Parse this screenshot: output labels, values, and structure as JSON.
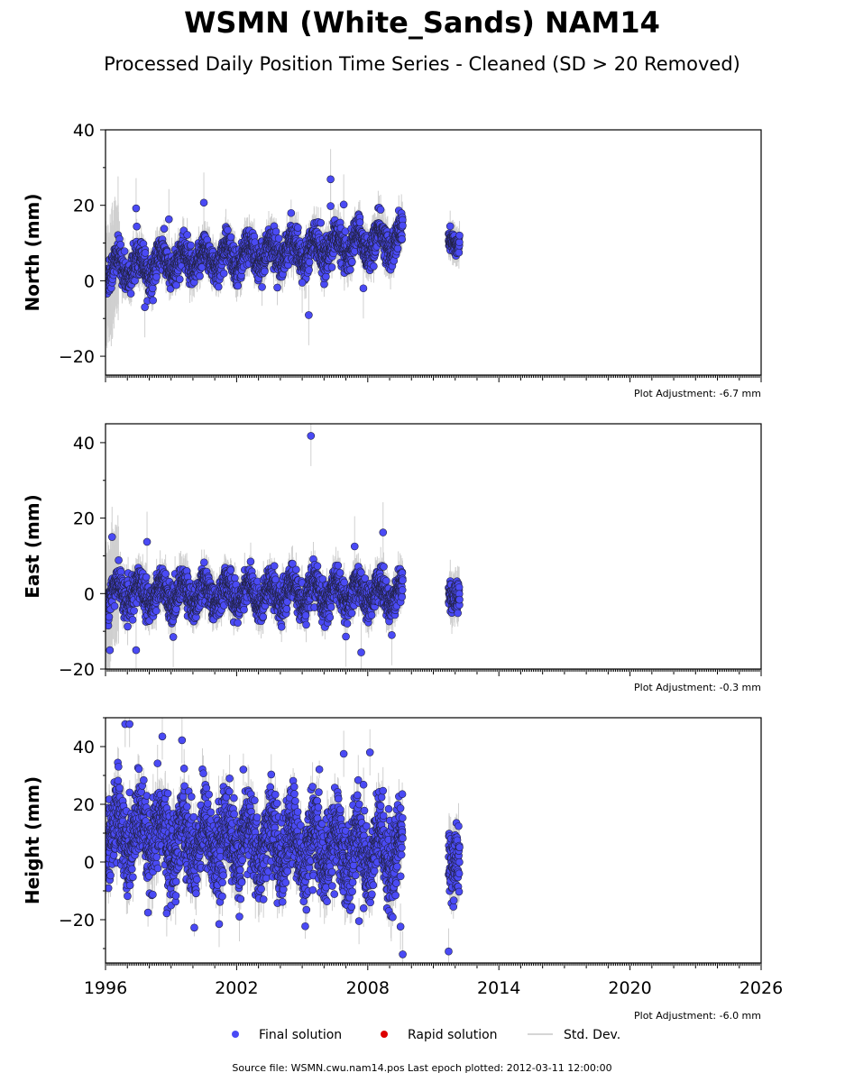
{
  "title": "WSMN (White_Sands) NAM14",
  "subtitle": "Processed Daily Position Time Series - Cleaned (SD > 20 Removed)",
  "footer": "Source file: WSMN.cwu.nam14.pos  Last epoch plotted: 2012-03-11 12:00:00",
  "legend": {
    "final": "Final solution",
    "rapid": "Rapid solution",
    "std": "Std. Dev."
  },
  "colors": {
    "final": "#4a4af5",
    "rapid": "#dd0000",
    "std": "#c8c8c8"
  },
  "chart_data": [
    {
      "type": "scatter",
      "ylabel": "North (mm)",
      "adjustment": "Plot Adjustment: -6.7 mm",
      "xlim": [
        1996,
        2026
      ],
      "ylim": [
        -25,
        40
      ],
      "yticks": [
        -20,
        0,
        20,
        40
      ],
      "xticks": [
        1996,
        2002,
        2008,
        2014,
        2020,
        2026
      ],
      "show_xtick_labels": false,
      "segments": [
        {
          "start": 1996.0,
          "end": 2009.6,
          "base": [
            3,
            11
          ],
          "amp": 3.0,
          "noise": 2.2,
          "std": 3.5
        },
        {
          "start": 2011.7,
          "end": 2012.2,
          "base": [
            10.5,
            10.5
          ],
          "amp": 1.0,
          "noise": 1.5,
          "std": 3.0
        }
      ],
      "outliers": [
        [
          1997.4,
          19.2
        ],
        [
          1998.9,
          16.3
        ],
        [
          2000.5,
          20.7
        ],
        [
          2005.3,
          -9.1
        ],
        [
          2006.3,
          26.9
        ],
        [
          2006.3,
          19.8
        ],
        [
          2006.9,
          20.2
        ],
        [
          2007.8,
          -2.0
        ],
        [
          2005.0,
          -0.5
        ],
        [
          1997.8,
          -7.0
        ]
      ]
    },
    {
      "type": "scatter",
      "ylabel": "East (mm)",
      "adjustment": "Plot Adjustment: -0.3 mm",
      "xlim": [
        1996,
        2026
      ],
      "ylim": [
        -20,
        45
      ],
      "yticks": [
        -20,
        0,
        20,
        40
      ],
      "xticks": [
        1996,
        2002,
        2008,
        2014,
        2020,
        2026
      ],
      "show_xtick_labels": false,
      "segments": [
        {
          "start": 1996.0,
          "end": 2009.6,
          "base": [
            0,
            0
          ],
          "amp": 3.0,
          "noise": 2.2,
          "std": 3.5
        },
        {
          "start": 2011.7,
          "end": 2012.2,
          "base": [
            -0.5,
            -0.5
          ],
          "amp": 1.0,
          "noise": 2.0,
          "std": 4.0
        }
      ],
      "outliers": [
        [
          2005.4,
          41.8
        ],
        [
          1996.3,
          15.0
        ],
        [
          1996.2,
          -15.0
        ],
        [
          1997.4,
          -15.0
        ],
        [
          1997.9,
          13.7
        ],
        [
          2007.7,
          -15.6
        ],
        [
          2008.7,
          16.2
        ],
        [
          2007.0,
          -11.4
        ],
        [
          2007.4,
          12.5
        ],
        [
          2009.1,
          -11.0
        ],
        [
          1999.1,
          -11.5
        ]
      ]
    },
    {
      "type": "scatter",
      "ylabel": "Height (mm)",
      "adjustment": "Plot Adjustment: -6.0 mm",
      "xlim": [
        1996,
        2026
      ],
      "ylim": [
        -35,
        50
      ],
      "yticks": [
        -20,
        0,
        20,
        40
      ],
      "xticks": [
        1996,
        2002,
        2008,
        2014,
        2020,
        2026
      ],
      "show_xtick_labels": true,
      "segments": [
        {
          "start": 1996.0,
          "end": 2009.6,
          "base": [
            10,
            3
          ],
          "amp": 7.0,
          "noise": 7.0,
          "std": 6.0
        },
        {
          "start": 2011.7,
          "end": 2012.2,
          "base": [
            0,
            0
          ],
          "amp": 2.0,
          "noise": 6.0,
          "std": 6.0
        }
      ],
      "outliers": [
        [
          1996.9,
          47.8
        ],
        [
          1997.1,
          47.8
        ],
        [
          1998.6,
          43.5
        ],
        [
          1999.5,
          42.2
        ],
        [
          1998.8,
          -17.8
        ],
        [
          2001.2,
          -21.5
        ],
        [
          2009.6,
          -32.0
        ],
        [
          2011.7,
          -31.0
        ],
        [
          2007.6,
          -20.5
        ],
        [
          2006.9,
          37.5
        ],
        [
          2008.1,
          38.0
        ],
        [
          2009.5,
          -22.4
        ]
      ]
    }
  ]
}
